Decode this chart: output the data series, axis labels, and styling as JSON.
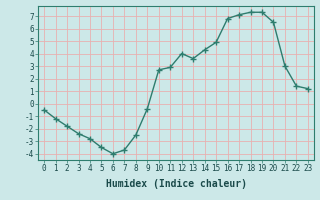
{
  "x": [
    0,
    1,
    2,
    3,
    4,
    5,
    6,
    7,
    8,
    9,
    10,
    11,
    12,
    13,
    14,
    15,
    16,
    17,
    18,
    19,
    20,
    21,
    22,
    23
  ],
  "y": [
    -0.5,
    -1.2,
    -1.8,
    -2.4,
    -2.8,
    -3.5,
    -4.0,
    -3.7,
    -2.5,
    -0.4,
    2.7,
    2.9,
    4.0,
    3.6,
    4.3,
    4.9,
    6.8,
    7.1,
    7.3,
    7.3,
    6.5,
    3.0,
    1.4,
    1.2
  ],
  "line_color": "#2e7d6e",
  "marker": "+",
  "marker_size": 4,
  "bg_color": "#cce8e8",
  "grid_color_major": "#e8c0c0",
  "grid_color_minor": "#d4e8e8",
  "xlabel": "Humidex (Indice chaleur)",
  "xlim": [
    -0.5,
    23.5
  ],
  "ylim": [
    -4.5,
    7.8
  ],
  "yticks": [
    -4,
    -3,
    -2,
    -1,
    0,
    1,
    2,
    3,
    4,
    5,
    6,
    7
  ],
  "xticks": [
    0,
    1,
    2,
    3,
    4,
    5,
    6,
    7,
    8,
    9,
    10,
    11,
    12,
    13,
    14,
    15,
    16,
    17,
    18,
    19,
    20,
    21,
    22,
    23
  ],
  "tick_fontsize": 5.5,
  "xlabel_fontsize": 7,
  "linewidth": 1.0,
  "spine_color": "#2e7d6e"
}
